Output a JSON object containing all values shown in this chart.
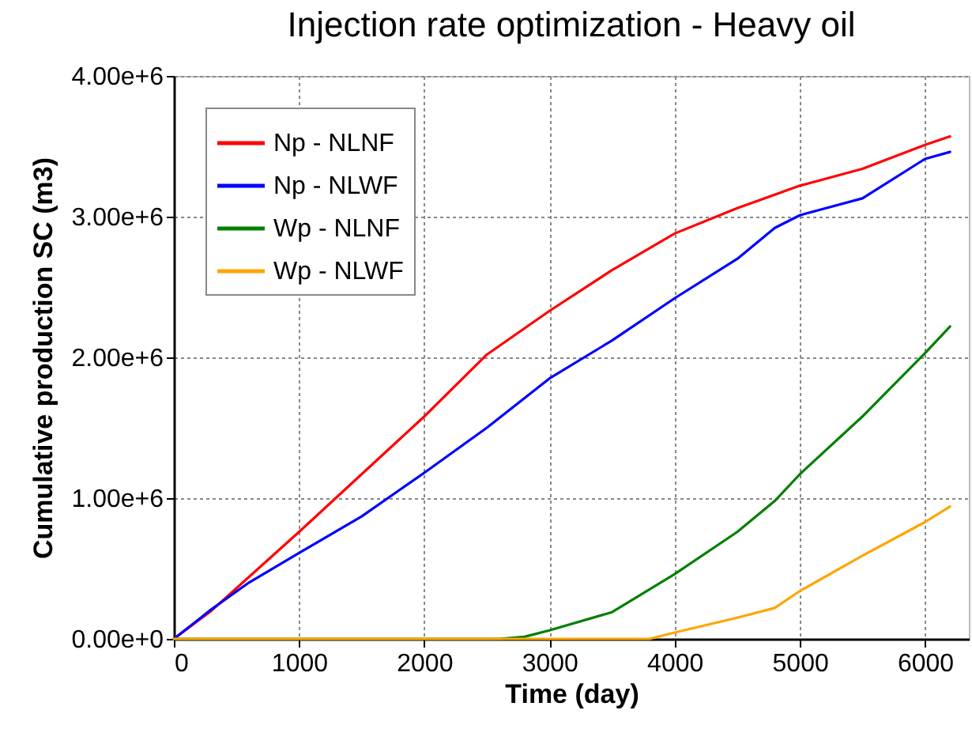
{
  "chart_data": {
    "type": "line",
    "title": "Injection rate optimization - Heavy oil",
    "xlabel": "Time (day)",
    "ylabel": "Cumulative production SC (m3)",
    "xlim": [
      0,
      6350
    ],
    "xticks": [
      0,
      1000,
      2000,
      3000,
      4000,
      5000,
      6000
    ],
    "ylim": [
      0,
      4000000
    ],
    "yticks": [
      {
        "value": 0,
        "label": "0.00e+0"
      },
      {
        "value": 1000000,
        "label": "1.00e+6"
      },
      {
        "value": 2000000,
        "label": "2.00e+6"
      },
      {
        "value": 3000000,
        "label": "3.00e+6"
      },
      {
        "value": 4000000,
        "label": "4.00e+6"
      }
    ],
    "grid": true,
    "legend": "top left",
    "marker": "none",
    "line_style": "solid",
    "series": [
      {
        "name": "Np - NLNF",
        "color": "#ff0000",
        "x": [
          0,
          300,
          1000,
          2000,
          2500,
          3000,
          3500,
          4000,
          4500,
          5000,
          5500,
          6000,
          6200
        ],
        "values": [
          0,
          200000,
          760000,
          1580000,
          2020000,
          2330000,
          2620000,
          2880000,
          3060000,
          3220000,
          3340000,
          3510000,
          3570000
        ]
      },
      {
        "name": "Np - NLWF",
        "color": "#0000ff",
        "x": [
          0,
          300,
          600,
          1000,
          1500,
          2000,
          2500,
          3000,
          3500,
          4000,
          4500,
          4800,
          5000,
          5500,
          6000,
          6200
        ],
        "values": [
          0,
          210000,
          400000,
          610000,
          870000,
          1180000,
          1500000,
          1850000,
          2120000,
          2420000,
          2700000,
          2920000,
          3010000,
          3130000,
          3410000,
          3460000
        ]
      },
      {
        "name": "Wp - NLNF",
        "color": "#008000",
        "x": [
          0,
          2600,
          2800,
          3000,
          3500,
          4000,
          4500,
          4800,
          5000,
          5500,
          6000,
          6200
        ],
        "values": [
          0,
          0,
          15000,
          60000,
          190000,
          460000,
          760000,
          980000,
          1170000,
          1580000,
          2030000,
          2220000
        ]
      },
      {
        "name": "Wp - NLWF",
        "color": "#ffa500",
        "x": [
          0,
          3800,
          4000,
          4500,
          4800,
          5000,
          5500,
          6000,
          6200
        ],
        "values": [
          0,
          0,
          45000,
          150000,
          220000,
          340000,
          590000,
          830000,
          940000
        ]
      }
    ]
  }
}
